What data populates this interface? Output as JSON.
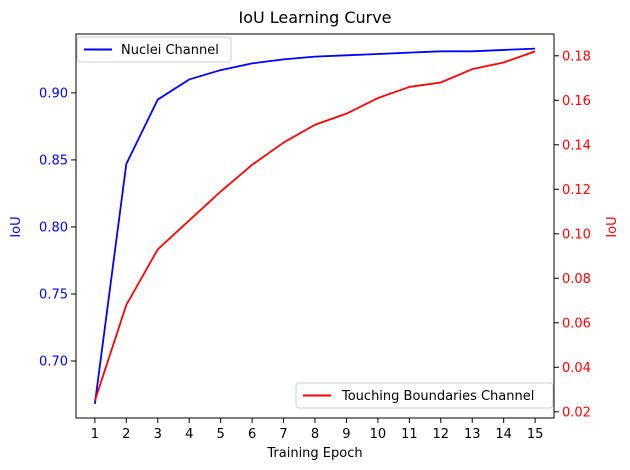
{
  "chart_data": {
    "type": "line",
    "title": "IoU Learning Curve",
    "xlabel": "Training Epoch",
    "x": [
      1,
      2,
      3,
      4,
      5,
      6,
      7,
      8,
      9,
      10,
      11,
      12,
      13,
      14,
      15
    ],
    "xlim": [
      0.4,
      15.6
    ],
    "grid": false,
    "left_axis": {
      "label": "IoU",
      "color": "#0000ff",
      "ylim": [
        0.6575,
        0.9439
      ],
      "ticks": [
        0.7,
        0.75,
        0.8,
        0.85,
        0.9
      ],
      "tick_labels": [
        "0.70",
        "0.75",
        "0.80",
        "0.85",
        "0.90"
      ]
    },
    "right_axis": {
      "label": "IoU",
      "color": "#ff0000",
      "ylim": [
        0.0172,
        0.1898
      ],
      "ticks": [
        0.02,
        0.04,
        0.06,
        0.08,
        0.1,
        0.12,
        0.14,
        0.16,
        0.18
      ],
      "tick_labels": [
        "0.02",
        "0.04",
        "0.06",
        "0.08",
        "0.10",
        "0.12",
        "0.14",
        "0.16",
        "0.18"
      ]
    },
    "series": [
      {
        "name": "Nuclei Channel",
        "axis": "left",
        "color": "#0000ff",
        "values": [
          0.668,
          0.847,
          0.895,
          0.91,
          0.917,
          0.922,
          0.925,
          0.927,
          0.928,
          0.929,
          0.93,
          0.931,
          0.931,
          0.932,
          0.933
        ],
        "legend_position": "upper-left"
      },
      {
        "name": "Touching Boundaries Channel",
        "axis": "right",
        "color": "#ff0000",
        "values": [
          0.025,
          0.068,
          0.093,
          0.106,
          0.119,
          0.131,
          0.141,
          0.149,
          0.154,
          0.161,
          0.166,
          0.168,
          0.174,
          0.177,
          0.182
        ],
        "legend_position": "lower-right"
      }
    ]
  }
}
